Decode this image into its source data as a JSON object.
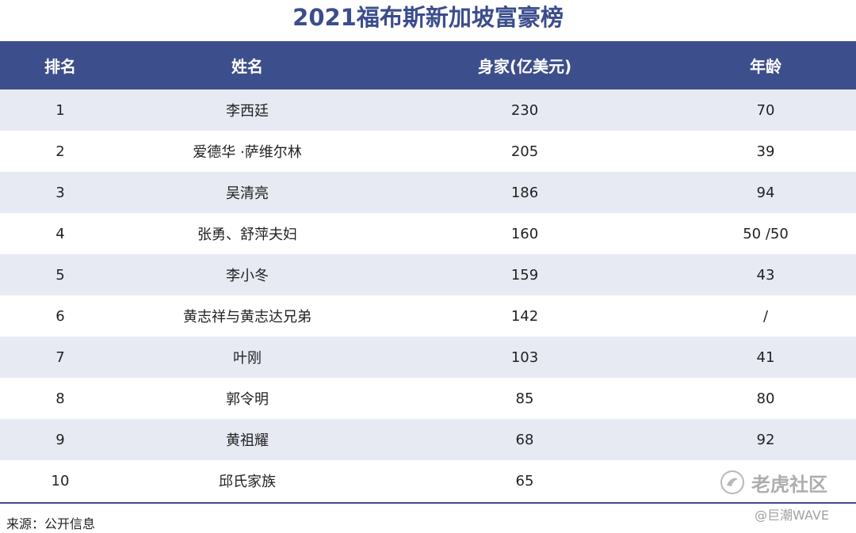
{
  "title": "2021福布斯新加坡富豪榜",
  "table": {
    "headers": [
      "排名",
      "姓名",
      "身家(亿美元)",
      "年龄"
    ],
    "rows": [
      {
        "rank": "1",
        "name": "李西廷",
        "wealth": "230",
        "age": "70"
      },
      {
        "rank": "2",
        "name": "爱德华 ·萨维尔林",
        "wealth": "205",
        "age": "39"
      },
      {
        "rank": "3",
        "name": "吴清亮",
        "wealth": "186",
        "age": "94"
      },
      {
        "rank": "4",
        "name": "张勇、舒萍夫妇",
        "wealth": "160",
        "age": "50 /50"
      },
      {
        "rank": "5",
        "name": "李小冬",
        "wealth": "159",
        "age": "43"
      },
      {
        "rank": "6",
        "name": "黄志祥与黄志达兄弟",
        "wealth": "142",
        "age": "/"
      },
      {
        "rank": "7",
        "name": "叶刚",
        "wealth": "103",
        "age": "41"
      },
      {
        "rank": "8",
        "name": "郭令明",
        "wealth": "85",
        "age": "80"
      },
      {
        "rank": "9",
        "name": "黄祖耀",
        "wealth": "68",
        "age": "92"
      },
      {
        "rank": "10",
        "name": "邱氏家族",
        "wealth": "65",
        "age": ""
      }
    ]
  },
  "source": "来源：公开信息",
  "watermark": {
    "logo_text": "老虎社区",
    "handle": "@巨潮WAVE",
    "icon": "tiger-logo-icon"
  },
  "colors": {
    "header_bg": "#3c4e8c",
    "stripe_bg": "#e7eaf3",
    "title": "#3b4d8c"
  }
}
